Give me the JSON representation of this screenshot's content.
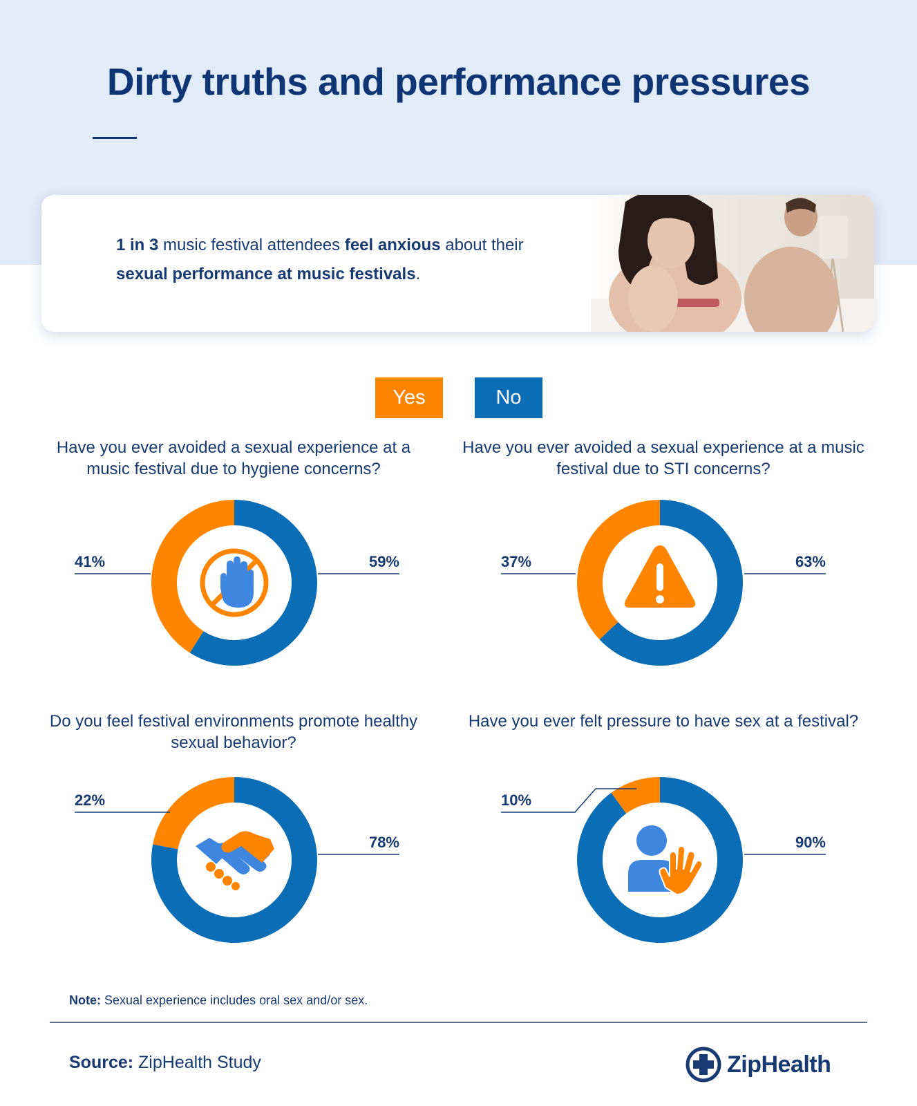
{
  "header": {
    "title": "Dirty truths and performance pressures"
  },
  "highlight": {
    "stat": "1 in 3",
    "text_a": " music festival attendees ",
    "emphasis_a": "feel anxious",
    "text_b": " about their ",
    "emphasis_b": "sexual performance at music festivals",
    "text_c": "."
  },
  "legend": {
    "yes": "Yes",
    "no": "No"
  },
  "colors": {
    "yes": "#ff8500",
    "no": "#0a6db5",
    "icon_blue": "#3f86e0",
    "navy": "#173a72"
  },
  "chart_data": [
    {
      "type": "pie",
      "title": "Have you ever avoided a sexual experience at a music festival due to hygiene concerns?",
      "categories": [
        "Yes",
        "No"
      ],
      "values": [
        41,
        59
      ],
      "labels": [
        "41%",
        "59%"
      ],
      "icon": "no-touch-hand-icon"
    },
    {
      "type": "pie",
      "title": "Have you ever avoided a sexual experience at a music festival due to STI concerns?",
      "categories": [
        "Yes",
        "No"
      ],
      "values": [
        37,
        63
      ],
      "labels": [
        "37%",
        "63%"
      ],
      "icon": "warning-icon"
    },
    {
      "type": "pie",
      "title": "Do you feel festival environments promote healthy sexual behavior?",
      "categories": [
        "Yes",
        "No"
      ],
      "values": [
        22,
        78
      ],
      "labels": [
        "22%",
        "78%"
      ],
      "icon": "handshake-icon"
    },
    {
      "type": "pie",
      "title": "Have you ever felt pressure to have sex at a festival?",
      "categories": [
        "Yes",
        "No"
      ],
      "values": [
        10,
        90
      ],
      "labels": [
        "10%",
        "90%"
      ],
      "icon": "person-hand-icon"
    }
  ],
  "note": {
    "label": "Note:",
    "text": " Sexual experience includes oral sex and/or sex."
  },
  "footer": {
    "source_label": "Source:",
    "source_text": " ZipHealth Study",
    "brand": "ZipHealth"
  }
}
